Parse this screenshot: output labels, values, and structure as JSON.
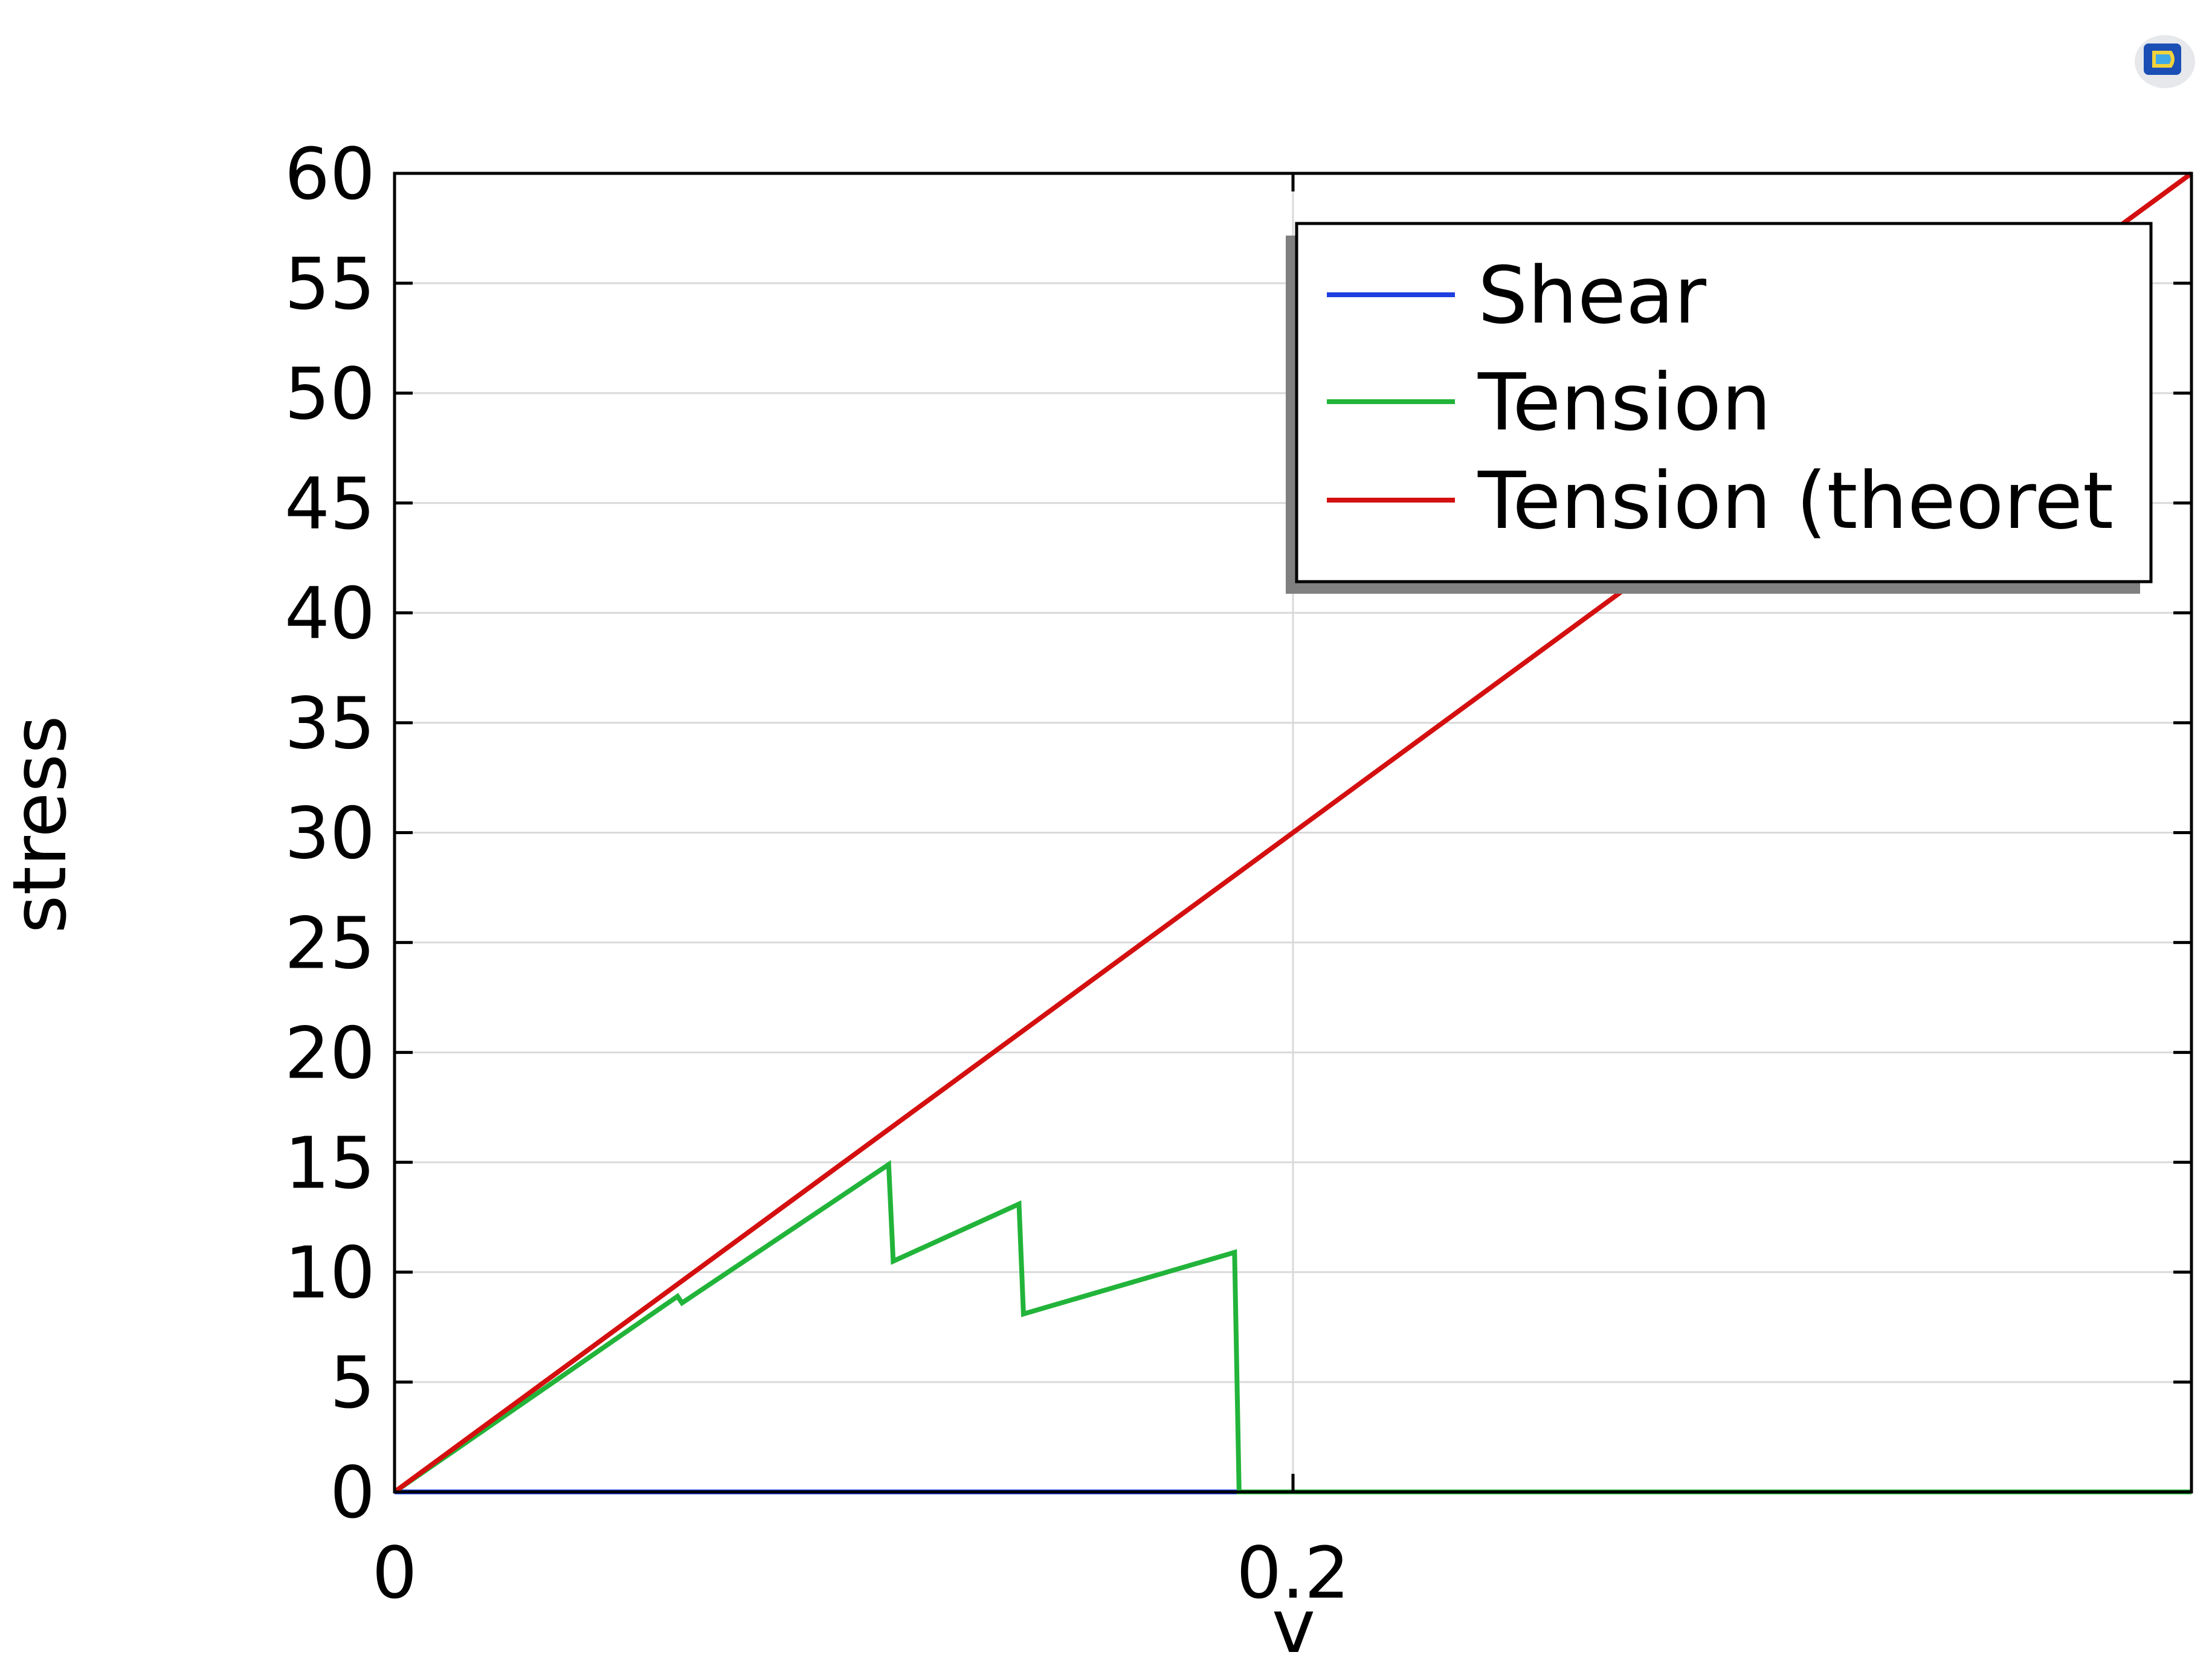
{
  "colors": {
    "shear": "#1f3fe0",
    "tension": "#22b43a",
    "tension_theoretical": "#d40f0f",
    "grid": "#d9d9d9",
    "axis": "#000000",
    "legend_shadow": "#808080"
  },
  "logo": {
    "icon": "comsol-logo-icon"
  },
  "chart_data": {
    "type": "line",
    "xlabel": "v",
    "ylabel": "stress",
    "xlim": [
      0,
      0.4
    ],
    "ylim": [
      0,
      60
    ],
    "xticks": [
      0,
      0.2
    ],
    "xtick_labels": [
      "0",
      "0.2"
    ],
    "yticks": [
      0,
      5,
      10,
      15,
      20,
      25,
      30,
      35,
      40,
      45,
      50,
      55,
      60
    ],
    "ytick_labels": [
      "0",
      "5",
      "10",
      "15",
      "20",
      "25",
      "30",
      "35",
      "40",
      "45",
      "50",
      "55",
      "60"
    ],
    "grid": true,
    "legend_position": "top-right",
    "series": [
      {
        "name": "Shear",
        "color": "#1f3fe0",
        "x": [
          0,
          0.188
        ],
        "y": [
          0,
          0
        ]
      },
      {
        "name": "Tension",
        "color": "#22b43a",
        "x": [
          0,
          0.063,
          0.064,
          0.11,
          0.111,
          0.139,
          0.14,
          0.187,
          0.188,
          0.4
        ],
        "y": [
          0,
          8.9,
          8.6,
          14.9,
          10.5,
          13.1,
          8.1,
          10.9,
          0,
          0
        ]
      },
      {
        "name": "Tension (theoretical)",
        "legend_label": "Tension (theoret",
        "color": "#d40f0f",
        "x": [
          0,
          0.4
        ],
        "y": [
          0,
          60
        ]
      }
    ]
  }
}
